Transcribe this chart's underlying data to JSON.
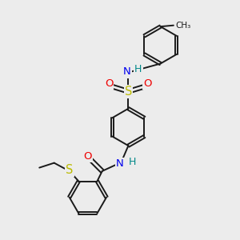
{
  "bg_color": "#ececec",
  "bond_color": "#1a1a1a",
  "bond_width": 1.4,
  "dbo": 0.06,
  "atom_colors": {
    "N": "#0000ee",
    "H": "#008888",
    "S": "#bbbb00",
    "O": "#ee0000",
    "C": "#1a1a1a"
  },
  "fig_bg": "#ececec"
}
